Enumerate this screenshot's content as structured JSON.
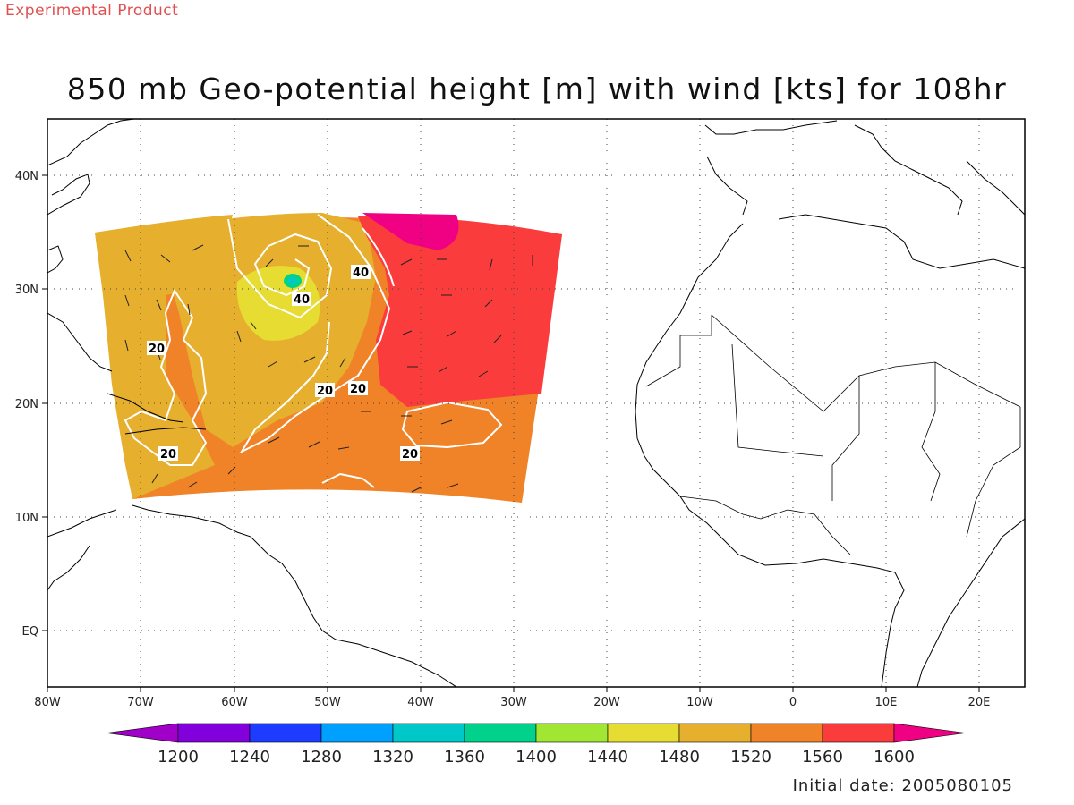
{
  "header": {
    "product_label": "Experimental Product",
    "title": "850 mb Geo-potential height [m] with wind [kts] for 108hr"
  },
  "footer": {
    "initial_date": "Initial date: 2005080105"
  },
  "map": {
    "lon_labels": [
      "80W",
      "70W",
      "60W",
      "50W",
      "40W",
      "30W",
      "20W",
      "10W",
      "0",
      "10E",
      "20E"
    ],
    "lat_labels": [
      "40N",
      "30N",
      "20N",
      "10N",
      "EQ"
    ],
    "grid": "dotted",
    "contour_labels": [
      "40",
      "40",
      "20",
      "20",
      "20",
      "20",
      "20"
    ]
  },
  "colorbar": {
    "ticks": [
      "1200",
      "1240",
      "1280",
      "1320",
      "1360",
      "1400",
      "1440",
      "1480",
      "1520",
      "1560",
      "1600"
    ],
    "colors": [
      "#a000c8",
      "#8200dc",
      "#1e3cff",
      "#00a0ff",
      "#00c8c8",
      "#00d28c",
      "#a0e632",
      "#e6dc32",
      "#e6af2d",
      "#f08228",
      "#fa3c3c",
      "#f00082"
    ]
  }
}
